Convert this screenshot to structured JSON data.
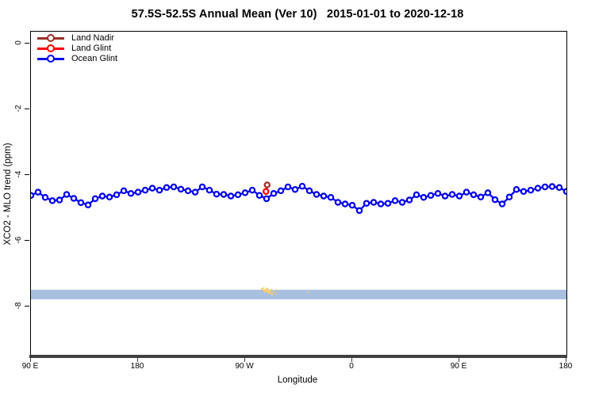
{
  "title": "57.5S-52.5S Annual Mean (Ver 10)   2015-01-01 to 2020-12-18",
  "legend": {
    "items": [
      {
        "label": "Land Nadir",
        "color": "#9a2f28"
      },
      {
        "label": "Land Glint",
        "color": "#fe0000"
      },
      {
        "label": "Ocean Glint",
        "color": "#0000ee"
      }
    ]
  },
  "colors": {
    "land_nadir": "#9a2f28",
    "land_glint": "#fe0000",
    "ocean_glint": "#0000ee",
    "highlight_band": "#a9bfdf",
    "specks": "#f3cf6f",
    "axis_line": "#3f3f3f",
    "text": "#000000"
  },
  "chart_data": {
    "type": "line",
    "title": "57.5S-52.5S Annual Mean (Ver 10)   2015-01-01 to 2020-12-18",
    "xlabel": "Longitude",
    "ylabel": "XCO2 - MLO trend (ppm)",
    "grid": false,
    "legend_position": "top-left",
    "x_axis_note": "longitude unwrapped eastward: 90E=90, 180=180, 90W=270, 0=360, 90E=450, 180=540",
    "xlim": [
      90,
      540
    ],
    "ylim": [
      -9.55,
      0.36
    ],
    "x_ticks": [
      {
        "pos": 90,
        "label": "90 E"
      },
      {
        "pos": 180,
        "label": "180"
      },
      {
        "pos": 270,
        "label": "90 W"
      },
      {
        "pos": 360,
        "label": "0"
      },
      {
        "pos": 450,
        "label": "90 E"
      },
      {
        "pos": 540,
        "label": "180"
      }
    ],
    "y_ticks": [
      {
        "pos": 0,
        "label": "0"
      },
      {
        "pos": -2,
        "label": "-2"
      },
      {
        "pos": -4,
        "label": "-4"
      },
      {
        "pos": -6,
        "label": "-6"
      },
      {
        "pos": -8,
        "label": "-8"
      }
    ],
    "series": [
      {
        "name": "Ocean Glint",
        "color": "#0000ee",
        "marker": "open-circle",
        "line": true,
        "points": [
          [
            90,
            -4.62
          ],
          [
            96,
            -4.52
          ],
          [
            102,
            -4.68
          ],
          [
            108,
            -4.78
          ],
          [
            114,
            -4.76
          ],
          [
            120,
            -4.59
          ],
          [
            126,
            -4.71
          ],
          [
            132,
            -4.84
          ],
          [
            138,
            -4.91
          ],
          [
            144,
            -4.72
          ],
          [
            150,
            -4.64
          ],
          [
            156,
            -4.67
          ],
          [
            162,
            -4.6
          ],
          [
            168,
            -4.48
          ],
          [
            174,
            -4.56
          ],
          [
            180,
            -4.52
          ],
          [
            186,
            -4.46
          ],
          [
            192,
            -4.4
          ],
          [
            198,
            -4.46
          ],
          [
            204,
            -4.38
          ],
          [
            210,
            -4.36
          ],
          [
            216,
            -4.43
          ],
          [
            222,
            -4.48
          ],
          [
            228,
            -4.52
          ],
          [
            234,
            -4.36
          ],
          [
            240,
            -4.46
          ],
          [
            246,
            -4.58
          ],
          [
            252,
            -4.59
          ],
          [
            258,
            -4.64
          ],
          [
            264,
            -4.6
          ],
          [
            270,
            -4.54
          ],
          [
            276,
            -4.46
          ],
          [
            282,
            -4.62
          ],
          [
            288,
            -4.72
          ],
          [
            294,
            -4.56
          ],
          [
            300,
            -4.48
          ],
          [
            306,
            -4.36
          ],
          [
            312,
            -4.44
          ],
          [
            318,
            -4.34
          ],
          [
            324,
            -4.48
          ],
          [
            330,
            -4.59
          ],
          [
            336,
            -4.64
          ],
          [
            342,
            -4.68
          ],
          [
            348,
            -4.83
          ],
          [
            354,
            -4.88
          ],
          [
            360,
            -4.92
          ],
          [
            366,
            -5.08
          ],
          [
            372,
            -4.86
          ],
          [
            378,
            -4.83
          ],
          [
            384,
            -4.88
          ],
          [
            390,
            -4.86
          ],
          [
            396,
            -4.78
          ],
          [
            402,
            -4.83
          ],
          [
            408,
            -4.76
          ],
          [
            414,
            -4.6
          ],
          [
            420,
            -4.68
          ],
          [
            426,
            -4.62
          ],
          [
            432,
            -4.56
          ],
          [
            438,
            -4.64
          ],
          [
            444,
            -4.59
          ],
          [
            450,
            -4.64
          ],
          [
            456,
            -4.52
          ],
          [
            462,
            -4.6
          ],
          [
            468,
            -4.67
          ],
          [
            474,
            -4.54
          ],
          [
            480,
            -4.75
          ],
          [
            486,
            -4.88
          ],
          [
            492,
            -4.67
          ],
          [
            498,
            -4.44
          ],
          [
            504,
            -4.5
          ],
          [
            510,
            -4.46
          ],
          [
            516,
            -4.4
          ],
          [
            522,
            -4.36
          ],
          [
            528,
            -4.35
          ],
          [
            534,
            -4.38
          ],
          [
            540,
            -4.5
          ]
        ]
      },
      {
        "name": "Land Glint",
        "color": "#fe0000",
        "marker": "open-circle",
        "line": false,
        "points": [
          [
            287.5,
            -4.5
          ]
        ]
      },
      {
        "name": "Land Nadir",
        "color": "#9a2f28",
        "marker": "open-circle",
        "line": false,
        "points": [
          [
            288.5,
            -4.3
          ]
        ]
      }
    ],
    "highlight_band": {
      "color": "#a9bfdf",
      "x_from": 90,
      "x_to": 540,
      "y_from": -7.78,
      "y_to": -7.49
    },
    "specks": {
      "color": "#f3cf6f",
      "points": [
        [
          284,
          -7.48,
          1.5
        ],
        [
          285.5,
          -7.44,
          1.2
        ],
        [
          287,
          -7.52,
          2.2
        ],
        [
          288.5,
          -7.47,
          1.8
        ],
        [
          290,
          -7.56,
          2.4
        ],
        [
          291.5,
          -7.5,
          1.5
        ],
        [
          292.5,
          -7.62,
          1.6
        ],
        [
          294,
          -7.55,
          1.2
        ],
        [
          296,
          -7.6,
          1.0
        ],
        [
          297,
          -7.5,
          0.9
        ],
        [
          323,
          -7.56,
          1.1
        ]
      ]
    }
  }
}
